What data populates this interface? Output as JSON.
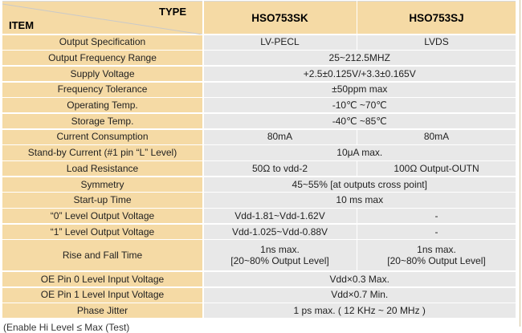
{
  "colors": {
    "item_column_bg": "#f5daa5",
    "value_cell_bg": "#e8e8e8",
    "separator": "#ffffff",
    "diagonal_line": "#c9c9c9",
    "text": "#1f1f1f"
  },
  "table": {
    "corner": {
      "type_label": "TYPE",
      "item_label": "ITEM"
    },
    "columns": [
      {
        "label": "HSO753SK"
      },
      {
        "label": "HSO753SJ"
      }
    ],
    "rows": [
      {
        "item": "Output Specification",
        "cells": [
          "LV-PECL",
          "LVDS"
        ]
      },
      {
        "item": "Output Frequency Range",
        "cells": [
          "25~212.5MHZ"
        ]
      },
      {
        "item": "Supply Voltage",
        "cells": [
          "+2.5±0.125V/+3.3±0.165V"
        ]
      },
      {
        "item": "Frequency Tolerance",
        "cells": [
          "±50ppm max"
        ]
      },
      {
        "item": "Operating Temp.",
        "cells": [
          "-10℃ ~70℃"
        ]
      },
      {
        "item": "Storage Temp.",
        "cells": [
          "-40℃ ~85℃"
        ]
      },
      {
        "item": "Current Consumption",
        "cells": [
          "80mA",
          "80mA"
        ]
      },
      {
        "item": "Stand-by Current (#1 pin “L” Level)",
        "cells": [
          "10μA max."
        ]
      },
      {
        "item": "Load Resistance",
        "cells": [
          "50Ω to vdd-2",
          "100Ω Output-OUTN"
        ]
      },
      {
        "item": "Symmetry",
        "cells": [
          "45~55% [at outputs cross point]"
        ]
      },
      {
        "item": "Start-up Time",
        "cells": [
          "10 ms max"
        ]
      },
      {
        "item": "“0” Level Output Voltage",
        "cells": [
          "Vdd-1.81~Vdd-1.62V",
          "-"
        ]
      },
      {
        "item": "“1” Level Output Voltage",
        "cells": [
          "Vdd-1.025~Vdd-0.88V",
          "-"
        ]
      },
      {
        "item": "Rise and Fall Time",
        "double": true,
        "cells": [
          "1ns max.\n[20~80% Output Level]",
          "1ns max.\n[20~80% Output Level]"
        ]
      },
      {
        "item": "OE Pin 0 Level Input Voltage",
        "cells": [
          "Vdd×0.3 Max."
        ]
      },
      {
        "item": "OE Pin 1 Level Input Voltage",
        "cells": [
          "Vdd×0.7 Min."
        ]
      },
      {
        "item": "Phase Jitter",
        "cells": [
          "1 ps max. ( 12 KHz ~ 20 MHz )"
        ]
      }
    ]
  },
  "footnote": "(Enable Hi Level ≤ Max (Test)"
}
